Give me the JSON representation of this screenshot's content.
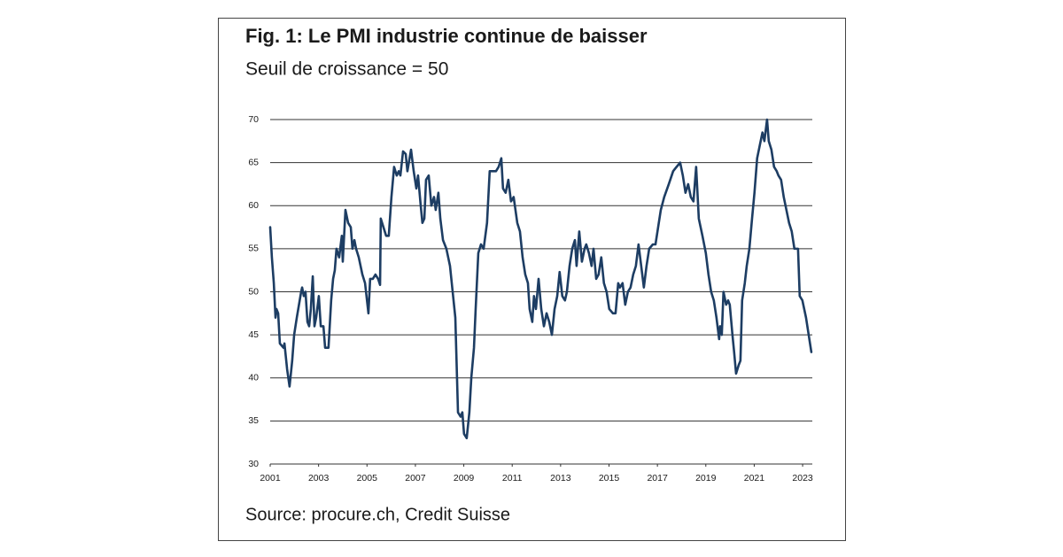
{
  "chart_data": {
    "type": "line",
    "title": "Fig. 1: Le PMI industrie continue de baisser",
    "subtitle": "Seuil de croissance = 50",
    "source": "Source: procure.ch, Credit Suisse",
    "color": "#1d3d63",
    "grid": true,
    "xlim": [
      2001,
      2023.4
    ],
    "xticks": [
      2001,
      2003,
      2005,
      2007,
      2009,
      2011,
      2013,
      2015,
      2017,
      2019,
      2021,
      2023
    ],
    "ylim": [
      30,
      70
    ],
    "yticks": [
      30,
      35,
      40,
      45,
      50,
      55,
      60,
      65,
      70
    ],
    "x": [
      2001.0,
      2001.07,
      2001.15,
      2001.22,
      2001.26,
      2001.33,
      2001.4,
      2001.55,
      2001.59,
      2001.7,
      2001.8,
      2001.91,
      2001.99,
      2002.1,
      2002.28,
      2002.32,
      2002.39,
      2002.46,
      2002.54,
      2002.61,
      2002.68,
      2002.76,
      2002.83,
      2002.9,
      2003.01,
      2003.09,
      2003.2,
      2003.27,
      2003.41,
      2003.52,
      2003.6,
      2003.67,
      2003.74,
      2003.85,
      2003.96,
      2004.0,
      2004.11,
      2004.22,
      2004.33,
      2004.4,
      2004.48,
      2004.55,
      2004.66,
      2004.81,
      2004.92,
      2005.06,
      2005.13,
      2005.24,
      2005.35,
      2005.46,
      2005.54,
      2005.57,
      2005.68,
      2005.79,
      2005.9,
      2006.01,
      2006.12,
      2006.23,
      2006.31,
      2006.38,
      2006.49,
      2006.6,
      2006.67,
      2006.82,
      2006.93,
      2007.04,
      2007.11,
      2007.22,
      2007.29,
      2007.37,
      2007.44,
      2007.55,
      2007.66,
      2007.77,
      2007.84,
      2007.95,
      2008.03,
      2008.14,
      2008.28,
      2008.43,
      2008.54,
      2008.65,
      2008.72,
      2008.76,
      2008.87,
      2008.94,
      2009.01,
      2009.12,
      2009.23,
      2009.31,
      2009.42,
      2009.49,
      2009.6,
      2009.71,
      2009.82,
      2009.96,
      2010.07,
      2010.22,
      2010.33,
      2010.44,
      2010.55,
      2010.62,
      2010.73,
      2010.84,
      2010.95,
      2011.06,
      2011.21,
      2011.32,
      2011.43,
      2011.54,
      2011.65,
      2011.72,
      2011.83,
      2011.9,
      2011.98,
      2012.09,
      2012.2,
      2012.31,
      2012.42,
      2012.53,
      2012.64,
      2012.75,
      2012.86,
      2012.96,
      2013.07,
      2013.18,
      2013.26,
      2013.37,
      2013.48,
      2013.59,
      2013.66,
      2013.77,
      2013.88,
      2013.99,
      2014.06,
      2014.17,
      2014.28,
      2014.36,
      2014.47,
      2014.57,
      2014.68,
      2014.79,
      2014.9,
      2015.01,
      2015.16,
      2015.27,
      2015.38,
      2015.45,
      2015.56,
      2015.67,
      2015.78,
      2015.89,
      2016.0,
      2016.11,
      2016.22,
      2016.33,
      2016.44,
      2016.55,
      2016.66,
      2016.81,
      2016.92,
      2017.03,
      2017.14,
      2017.28,
      2017.47,
      2017.65,
      2017.79,
      2017.94,
      2018.05,
      2018.16,
      2018.27,
      2018.38,
      2018.49,
      2018.6,
      2018.71,
      2018.86,
      2019.0,
      2019.11,
      2019.22,
      2019.33,
      2019.44,
      2019.55,
      2019.59,
      2019.66,
      2019.73,
      2019.84,
      2019.92,
      2019.99,
      2020.1,
      2020.17,
      2020.25,
      2020.36,
      2020.43,
      2020.5,
      2020.61,
      2020.69,
      2020.8,
      2020.91,
      2021.01,
      2021.12,
      2021.23,
      2021.34,
      2021.42,
      2021.53,
      2021.6,
      2021.71,
      2021.82,
      2021.93,
      2022.0,
      2022.11,
      2022.22,
      2022.33,
      2022.44,
      2022.55,
      2022.66,
      2022.81,
      2022.88,
      2022.99,
      2023.14,
      2023.36
    ],
    "values": [
      57.5,
      54,
      51,
      47,
      48,
      47.5,
      44,
      43.5,
      44,
      41,
      39,
      42,
      45,
      47,
      50,
      50.5,
      49.5,
      50,
      46.5,
      46,
      48,
      51.8,
      46,
      47,
      49.5,
      46,
      46,
      43.5,
      43.5,
      49,
      51.5,
      52.5,
      55,
      54,
      56.5,
      53.5,
      59.5,
      58,
      57.5,
      55,
      56,
      55,
      54,
      52,
      51,
      47.5,
      51.5,
      51.5,
      52,
      51.5,
      50.8,
      58.5,
      57.5,
      56.5,
      56.5,
      61,
      64.5,
      63.5,
      64,
      63.5,
      66.3,
      66,
      64,
      66.5,
      64,
      62,
      63.5,
      60,
      58,
      58.5,
      63,
      63.5,
      60,
      61,
      59.5,
      61.5,
      58.5,
      56,
      55,
      53,
      50,
      47,
      40,
      36,
      35.5,
      36,
      33.5,
      33,
      36,
      40,
      43.5,
      48,
      54.5,
      55.5,
      55,
      58,
      64,
      64,
      64,
      64.5,
      65.5,
      62,
      61.5,
      63,
      60.5,
      61,
      58,
      57,
      54,
      52,
      51,
      48,
      46.5,
      49.5,
      48,
      51.5,
      48,
      46,
      47.5,
      46.5,
      45,
      48,
      49.5,
      52.3,
      49.5,
      49,
      50,
      53,
      55,
      56,
      53,
      57,
      53.5,
      55,
      55.5,
      54.5,
      53,
      55,
      51.5,
      52,
      54,
      51,
      50,
      48,
      47.5,
      47.5,
      51,
      50.5,
      51,
      48.5,
      50,
      50.5,
      52,
      53,
      55.5,
      53,
      50.5,
      53,
      55,
      55.5,
      55.5,
      57.5,
      59.5,
      61,
      62.5,
      64,
      64.5,
      65,
      63.5,
      61.5,
      62.5,
      61,
      60.5,
      64.5,
      58.5,
      56.5,
      54.5,
      52,
      50,
      49,
      47,
      44.5,
      46,
      45,
      50,
      48.5,
      49,
      48.5,
      45,
      43,
      40.5,
      41.5,
      42,
      49,
      51,
      53,
      55,
      58.5,
      61.5,
      65.5,
      67,
      68.5,
      67.5,
      70,
      67.5,
      66.5,
      64.5,
      64,
      63.5,
      63,
      61,
      59.5,
      58,
      57,
      55,
      55,
      49.5,
      49,
      47,
      43
    ]
  }
}
